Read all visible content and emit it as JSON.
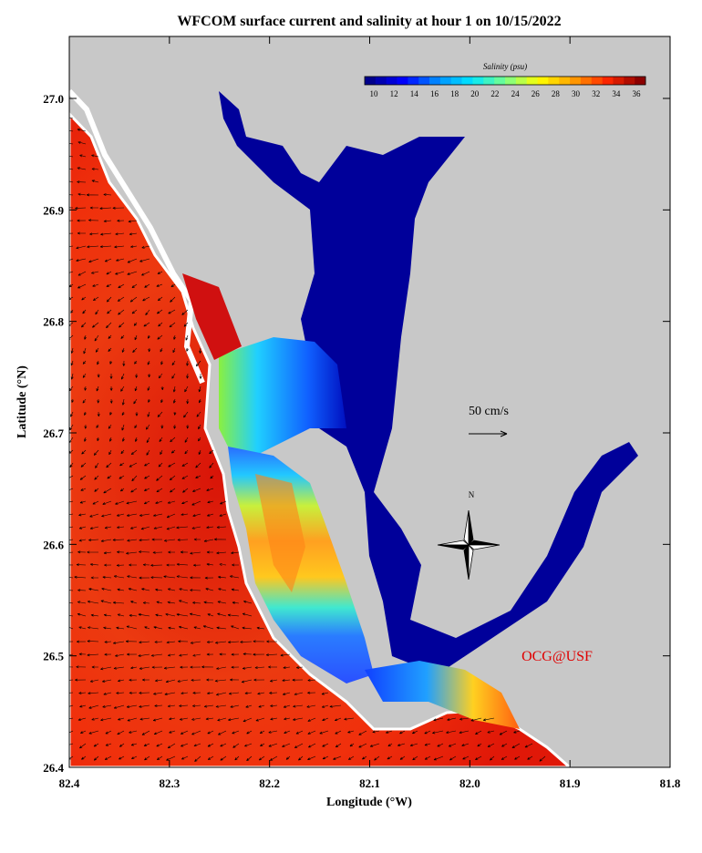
{
  "title": "WFCOM surface current and salinity at hour 1 on 10/15/2022",
  "x_axis": {
    "label": "Longitude (°W)",
    "ticks": [
      "82.4",
      "82.3",
      "82.2",
      "82.1",
      "82.0",
      "81.9",
      "81.8"
    ]
  },
  "y_axis": {
    "label": "Latitude (°N)",
    "ticks": [
      "26.4",
      "26.5",
      "26.6",
      "26.7",
      "26.8",
      "26.9",
      "27.0"
    ]
  },
  "colorbar": {
    "title": "Salinity (psu)",
    "ticks": [
      "10",
      "12",
      "14",
      "16",
      "18",
      "20",
      "22",
      "24",
      "26",
      "28",
      "30",
      "32",
      "34",
      "36"
    ]
  },
  "scale_arrow": {
    "label": "50 cm/s"
  },
  "compass": {
    "label": "N"
  },
  "credit": "OCG@USF"
}
